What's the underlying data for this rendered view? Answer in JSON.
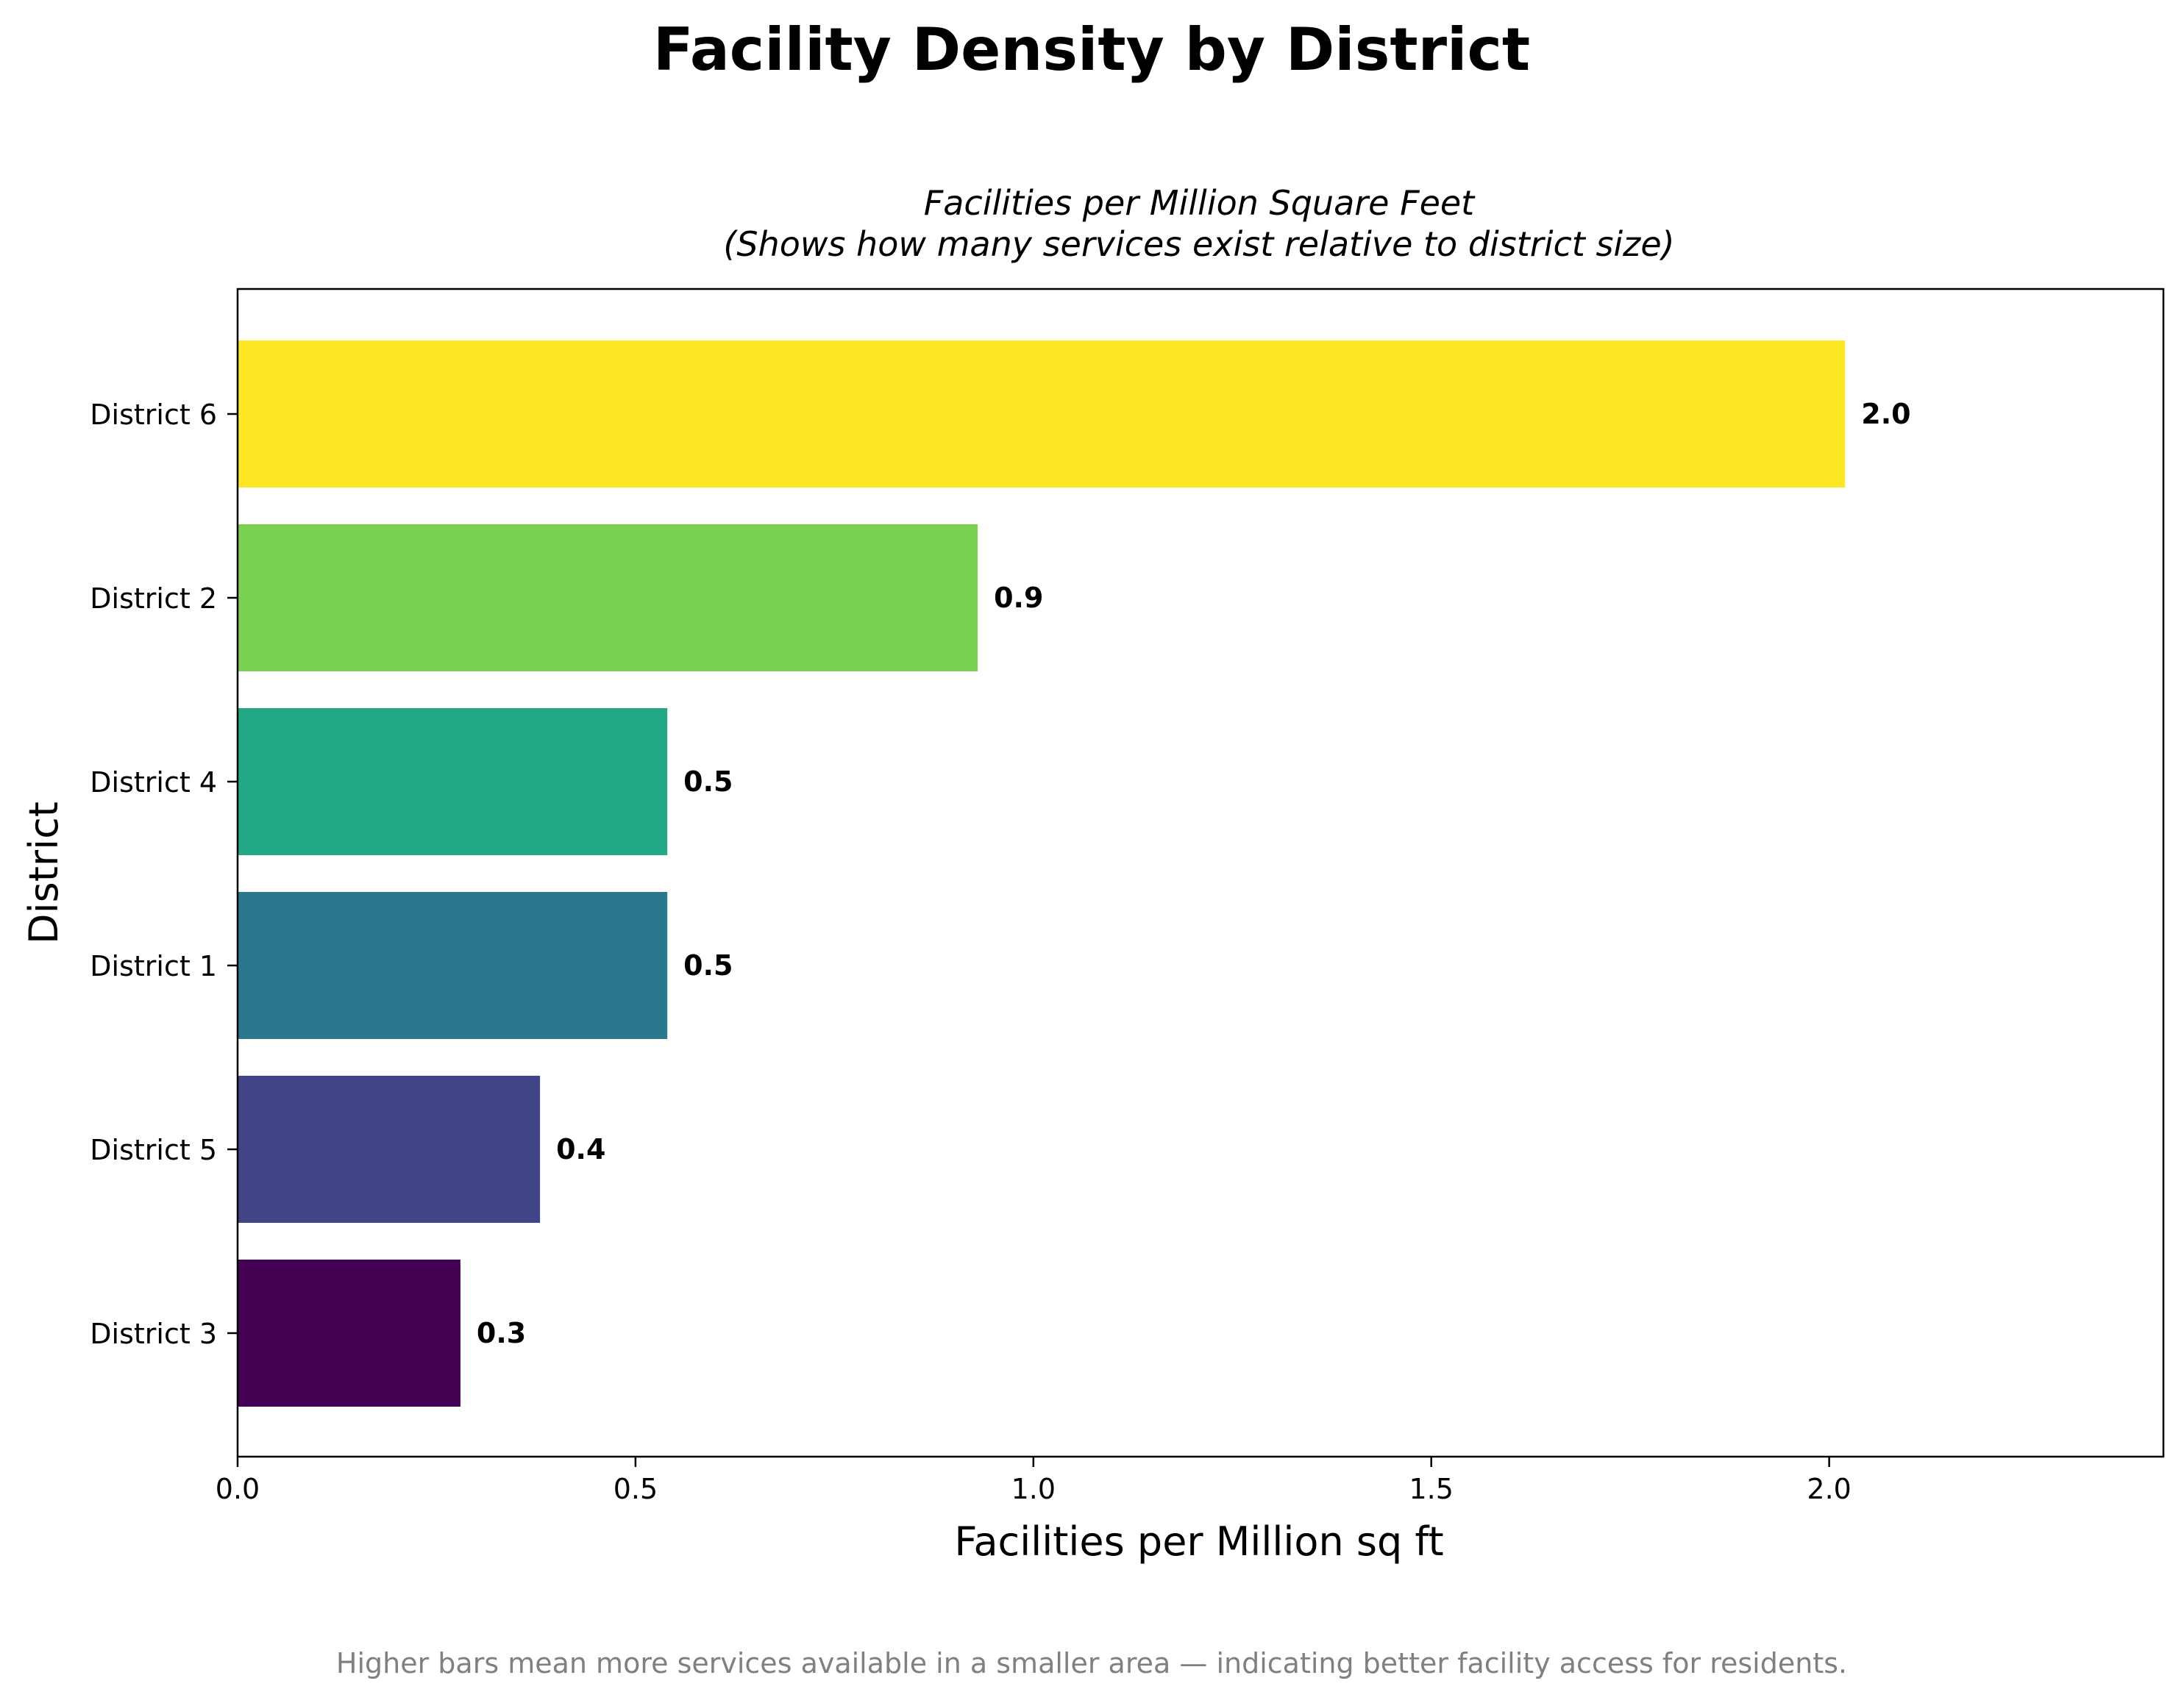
{
  "figure": {
    "title": "Facility Density by District",
    "footnote": "Higher bars mean more services available in a smaller area — indicating better facility access for residents."
  },
  "chart_data": {
    "type": "bar",
    "orientation": "horizontal",
    "title_lines": [
      "Facilities per Million Square Feet",
      "(Shows how many services exist relative to district size)"
    ],
    "xlabel": "Facilities per Million sq ft",
    "ylabel": "District",
    "categories": [
      "District 6",
      "District 2",
      "District 4",
      "District 1",
      "District 5",
      "District 3"
    ],
    "values": [
      2.02,
      0.93,
      0.54,
      0.54,
      0.38,
      0.28
    ],
    "data_labels": [
      "2.0",
      "0.9",
      "0.5",
      "0.5",
      "0.4",
      "0.3"
    ],
    "colors": [
      "#fde725",
      "#7ad151",
      "#22a884",
      "#2a788e",
      "#414487",
      "#440154"
    ],
    "xlim": [
      0,
      2.42
    ],
    "xticks": [
      0.0,
      0.5,
      1.0,
      1.5,
      2.0
    ],
    "xtick_labels": [
      "0.0",
      "0.5",
      "1.0",
      "1.5",
      "2.0"
    ],
    "grid": false,
    "legend": false
  }
}
